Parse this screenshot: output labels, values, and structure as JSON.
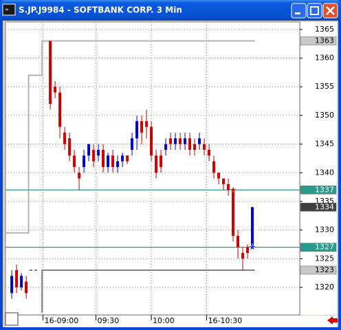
{
  "chart_data": {
    "type": "candlestick",
    "title": "S.JP.J9984 - SOFTBANK CORP. 3 Min",
    "ylim": [
      1315.2,
      1366.3
    ],
    "yticks": [
      1320,
      1325,
      1330,
      1335,
      1340,
      1345,
      1350,
      1355,
      1360,
      1365
    ],
    "xlim": [
      -1.3,
      59.85
    ],
    "xticks": [
      {
        "value": 6.5,
        "label": "16-09:00"
      },
      {
        "value": 17.5,
        "label": "09:30"
      },
      {
        "value": 29,
        "label": "10:00"
      },
      {
        "value": 40.5,
        "label": "16-10:30"
      }
    ],
    "grid": true,
    "up_color": "#0000cc",
    "down_color": "#cc0000",
    "open": [
      1319,
      1323,
      1320,
      1321,
      null,
      null,
      null,
      null,
      1363,
      1355,
      1354,
      1347,
      1346,
      1343,
      1340,
      1341,
      1343,
      1344,
      1343,
      1344,
      1341,
      1343,
      1341,
      1342,
      1343,
      1344,
      1346,
      1349,
      1349,
      1348,
      1343,
      1343,
      1344,
      1346,
      1345,
      1346,
      1345,
      1346,
      1345,
      1345,
      1345,
      1344,
      1342,
      1340,
      1339,
      1338,
      1337,
      1329,
      1326,
      1327,
      1327
    ],
    "high": [
      1323,
      1324,
      1322.5,
      1322,
      null,
      null,
      null,
      null,
      1363,
      1356,
      1355,
      1348,
      1347,
      1344,
      1341,
      1344,
      1345,
      1345,
      1345,
      1345,
      1343.5,
      1344,
      1343,
      1343.5,
      1343,
      1347,
      1350,
      1350,
      1351,
      1349,
      1344,
      1344,
      1346,
      1347,
      1347,
      1347,
      1347,
      1347,
      1346,
      1347,
      1346,
      1345,
      1343,
      1340,
      1339,
      1339,
      1337,
      1330,
      1327,
      1327.5,
      1334
    ],
    "low": [
      1318,
      1319,
      1319.5,
      1318,
      null,
      null,
      null,
      null,
      1351,
      1353,
      1346,
      1344,
      1342,
      1340,
      1337,
      1340,
      1342,
      1341,
      1342,
      1340,
      1340,
      1340,
      1340,
      1341,
      1341.5,
      1343,
      1344,
      1345,
      1346,
      1342,
      1339,
      1340,
      1343,
      1344,
      1344,
      1344,
      1344,
      1343,
      1343,
      1344,
      1343,
      1342,
      1339,
      1338,
      1337,
      1336,
      1328,
      1325,
      1323,
      1325,
      1327
    ],
    "close": [
      1322,
      1320,
      1322,
      1319,
      null,
      null,
      null,
      null,
      1352,
      1354,
      1348,
      1345,
      1343,
      1341,
      1339,
      1343,
      1345,
      1342,
      1344,
      1341,
      1343,
      1341,
      1342,
      1343,
      1342,
      1346,
      1349,
      1347,
      1348,
      1343,
      1340,
      1341,
      1345,
      1345,
      1346,
      1345,
      1346,
      1344,
      1344,
      1346,
      1344,
      1343,
      1340,
      1339,
      1338,
      1337,
      1329,
      1327,
      1325,
      1326,
      1334
    ],
    "lines": [
      {
        "color": "#b4b4b4",
        "x": [
          -1.3,
          3.5,
          3.5,
          6.3,
          6.3,
          50.5
        ],
        "values": [
          1329.5,
          1329.5,
          1357,
          1357,
          1363,
          1363
        ]
      },
      {
        "color": "#808080",
        "x": [
          6.3,
          6.3,
          50.5
        ],
        "values": [
          1315.6,
          1323,
          1323
        ]
      },
      {
        "color": "#808080",
        "dashed": true,
        "x": [
          3.7,
          5.5
        ],
        "values": [
          1323,
          1323
        ]
      }
    ],
    "levels": [
      {
        "value": 1337,
        "color": "#2a9a8a"
      },
      {
        "value": 1327,
        "color": "#2a9a8a"
      }
    ],
    "markers": [
      {
        "x": 46,
        "value": 1337,
        "color": "#e00000"
      },
      {
        "x": 50,
        "value": 1327,
        "color": "#1a3acc"
      }
    ],
    "price_labels": [
      {
        "value": 1363,
        "color": "#c8c8c8",
        "text_color": "#000000"
      },
      {
        "value": 1337,
        "color": "#2a9a8a",
        "text_color": "#ffffff"
      },
      {
        "value": 1334,
        "color": "#404040",
        "text_color": "#ffffff"
      },
      {
        "value": 1327,
        "color": "#2a9a8a",
        "text_color": "#ffffff"
      },
      {
        "value": 1323,
        "color": "#c8c8c8",
        "text_color": "#000000"
      }
    ]
  }
}
